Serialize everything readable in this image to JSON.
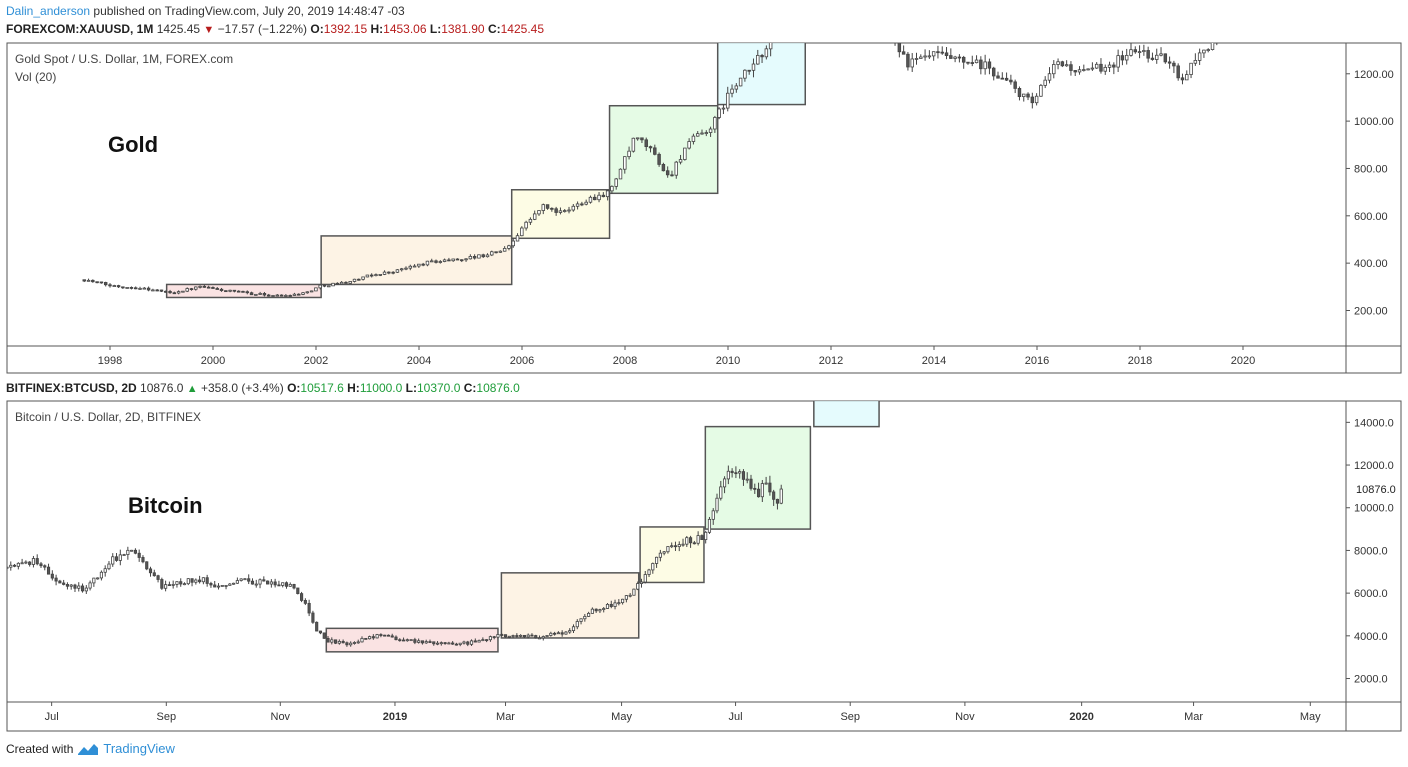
{
  "publication": {
    "author": "Dalin_anderson",
    "text": "published on TradingView.com, July 20, 2019 14:48:47 -03"
  },
  "colors": {
    "up_text": "#1f9d3a",
    "down_text": "#b71c1c",
    "candle_up": "#ffffff",
    "candle_down": "#555555",
    "candle_wick": "#444444",
    "brand": "#2f8fd6"
  },
  "gold_legend": {
    "symbol": "FOREXCOM:XAUUSD, 1M",
    "last": "1425.45",
    "change": "−17.57 (−1.22%)",
    "o_label": "O:",
    "o": "1392.15",
    "h_label": "H:",
    "h": "1453.06",
    "l_label": "L:",
    "l": "1381.90",
    "c_label": "C:",
    "c": "1425.45"
  },
  "btc_legend": {
    "symbol": "BITFINEX:BTCUSD, 2D",
    "last": "10876.0",
    "change": "+358.0 (+3.4%)",
    "o_label": "O:",
    "o": "10517.6",
    "h_label": "H:",
    "h": "11000.0",
    "l_label": "L:",
    "l": "10370.0",
    "c_label": "C:",
    "c": "10876.0"
  },
  "chart_data": [
    {
      "type": "candlestick",
      "title": "Gold Spot / U.S. Dollar, 1M, FOREX.com",
      "subtitle": "Vol (20)",
      "annotation": "Gold",
      "x_range": [
        1996.0,
        2022.0
      ],
      "ylim": [
        50,
        1330
      ],
      "x_ticks": [
        {
          "value": 1998,
          "label": "1998"
        },
        {
          "value": 2000,
          "label": "2000"
        },
        {
          "value": 2002,
          "label": "2002"
        },
        {
          "value": 2004,
          "label": "2004"
        },
        {
          "value": 2006,
          "label": "2006"
        },
        {
          "value": 2008,
          "label": "2008"
        },
        {
          "value": 2010,
          "label": "2010"
        },
        {
          "value": 2012,
          "label": "2012"
        },
        {
          "value": 2014,
          "label": "2014"
        },
        {
          "value": 2016,
          "label": "2016"
        },
        {
          "value": 2018,
          "label": "2018"
        },
        {
          "value": 2020,
          "label": "2020"
        }
      ],
      "y_ticks": [
        {
          "value": 200,
          "label": "200.00"
        },
        {
          "value": 400,
          "label": "400.00"
        },
        {
          "value": 600,
          "label": "600.00"
        },
        {
          "value": 800,
          "label": "800.00"
        },
        {
          "value": 1000,
          "label": "1000.00"
        },
        {
          "value": 1200,
          "label": "1200.00"
        }
      ],
      "boxes": [
        {
          "x0": 1999.1,
          "x1": 2002.1,
          "y0": 255,
          "y1": 310,
          "color": "#f8dada"
        },
        {
          "x0": 2002.1,
          "x1": 2005.8,
          "y0": 310,
          "y1": 515,
          "color": "#fcefdc"
        },
        {
          "x0": 2005.8,
          "x1": 2007.7,
          "y0": 505,
          "y1": 710,
          "color": "#fcfbdc"
        },
        {
          "x0": 2007.7,
          "x1": 2009.8,
          "y0": 695,
          "y1": 1065,
          "color": "#dcfadc"
        },
        {
          "x0": 2009.8,
          "x1": 2011.5,
          "y0": 1070,
          "y1": 1335,
          "color": "#dcfafc"
        }
      ],
      "anchors": [
        [
          1997.5,
          330
        ],
        [
          1998.0,
          305
        ],
        [
          1998.6,
          295
        ],
        [
          1999.2,
          275
        ],
        [
          1999.75,
          300
        ],
        [
          2000.2,
          285
        ],
        [
          2000.8,
          270
        ],
        [
          2001.3,
          262
        ],
        [
          2001.8,
          275
        ],
        [
          2002.1,
          305
        ],
        [
          2002.6,
          320
        ],
        [
          2003.1,
          350
        ],
        [
          2003.6,
          370
        ],
        [
          2004.2,
          405
        ],
        [
          2004.7,
          415
        ],
        [
          2005.2,
          430
        ],
        [
          2005.7,
          460
        ],
        [
          2006.0,
          550
        ],
        [
          2006.4,
          640
        ],
        [
          2006.8,
          610
        ],
        [
          2007.2,
          665
        ],
        [
          2007.7,
          700
        ],
        [
          2008.2,
          930
        ],
        [
          2008.5,
          880
        ],
        [
          2008.85,
          760
        ],
        [
          2009.2,
          900
        ],
        [
          2009.7,
          980
        ],
        [
          2010.0,
          1110
        ],
        [
          2010.5,
          1240
        ],
        [
          2010.95,
          1380
        ],
        [
          2013.2,
          1360
        ],
        [
          2013.5,
          1240
        ],
        [
          2014.0,
          1280
        ],
        [
          2014.5,
          1250
        ],
        [
          2015.0,
          1230
        ],
        [
          2015.5,
          1150
        ],
        [
          2015.9,
          1070
        ],
        [
          2016.4,
          1250
        ],
        [
          2016.9,
          1200
        ],
        [
          2017.5,
          1250
        ],
        [
          2017.9,
          1300
        ],
        [
          2018.5,
          1260
        ],
        [
          2018.8,
          1180
        ],
        [
          2019.2,
          1300
        ],
        [
          2019.5,
          1340
        ]
      ],
      "gap": [
        2011.55,
        2013.15
      ],
      "step": 0.0833
    },
    {
      "type": "candlestick",
      "title": "Bitcoin / U.S. Dollar, 2D, BITFINEX",
      "annotation": "Bitcoin",
      "x_range": [
        2018.435,
        2020.385
      ],
      "ylim": [
        900,
        15000
      ],
      "x_ticks": [
        {
          "value": 2018.5,
          "label": "Jul"
        },
        {
          "value": 2018.667,
          "label": "Sep"
        },
        {
          "value": 2018.833,
          "label": "Nov"
        },
        {
          "value": 2019.0,
          "label": "2019",
          "bold": true
        },
        {
          "value": 2019.161,
          "label": "Mar"
        },
        {
          "value": 2019.33,
          "label": "May"
        },
        {
          "value": 2019.496,
          "label": "Jul"
        },
        {
          "value": 2019.663,
          "label": "Sep"
        },
        {
          "value": 2019.83,
          "label": "Nov"
        },
        {
          "value": 2020.0,
          "label": "2020",
          "bold": true
        },
        {
          "value": 2020.163,
          "label": "Mar"
        },
        {
          "value": 2020.333,
          "label": "May"
        }
      ],
      "y_ticks": [
        {
          "value": 2000,
          "label": "2000.0"
        },
        {
          "value": 4000,
          "label": "4000.0"
        },
        {
          "value": 6000,
          "label": "6000.0"
        },
        {
          "value": 8000,
          "label": "8000.0"
        },
        {
          "value": 10000,
          "label": "10000.0"
        },
        {
          "value": 12000,
          "label": "12000.0"
        },
        {
          "value": 14000,
          "label": "14000.0"
        }
      ],
      "last_price": {
        "value": 10876,
        "label": "10876.0"
      },
      "boxes": [
        {
          "x0": 2018.9,
          "x1": 2019.15,
          "y0": 3250,
          "y1": 4350,
          "color": "#f8dada"
        },
        {
          "x0": 2019.155,
          "x1": 2019.355,
          "y0": 3900,
          "y1": 6950,
          "color": "#fcefdc"
        },
        {
          "x0": 2019.357,
          "x1": 2019.45,
          "y0": 6500,
          "y1": 9100,
          "color": "#fcfbdc"
        },
        {
          "x0": 2019.452,
          "x1": 2019.605,
          "y0": 9000,
          "y1": 13800,
          "color": "#dcfadc"
        },
        {
          "x0": 2019.61,
          "x1": 2019.705,
          "y0": 13800,
          "y1": 15800,
          "color": "#dcfafc"
        }
      ],
      "anchors": [
        [
          2018.435,
          7200
        ],
        [
          2018.48,
          7500
        ],
        [
          2018.51,
          6400
        ],
        [
          2018.55,
          6200
        ],
        [
          2018.59,
          7600
        ],
        [
          2018.62,
          8100
        ],
        [
          2018.66,
          6300
        ],
        [
          2018.71,
          6700
        ],
        [
          2018.74,
          6400
        ],
        [
          2018.78,
          6600
        ],
        [
          2018.82,
          6500
        ],
        [
          2018.85,
          6300
        ],
        [
          2018.87,
          5500
        ],
        [
          2018.885,
          4300
        ],
        [
          2018.9,
          3800
        ],
        [
          2018.93,
          3600
        ],
        [
          2018.97,
          4000
        ],
        [
          2019.02,
          3800
        ],
        [
          2019.07,
          3600
        ],
        [
          2019.12,
          3700
        ],
        [
          2019.15,
          4000
        ],
        [
          2019.2,
          3950
        ],
        [
          2019.25,
          4100
        ],
        [
          2019.28,
          5100
        ],
        [
          2019.33,
          5600
        ],
        [
          2019.355,
          6400
        ],
        [
          2019.38,
          7700
        ],
        [
          2019.41,
          8300
        ],
        [
          2019.45,
          8600
        ],
        [
          2019.47,
          10500
        ],
        [
          2019.49,
          11800
        ],
        [
          2019.51,
          11200
        ],
        [
          2019.53,
          10600
        ],
        [
          2019.54,
          11400
        ],
        [
          2019.555,
          10200
        ],
        [
          2019.565,
          10876
        ]
      ],
      "step": 0.0055
    }
  ]
}
